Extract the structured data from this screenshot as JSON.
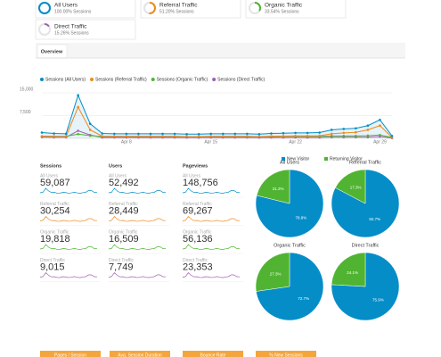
{
  "segments": [
    {
      "name": "All Users",
      "stat": "100.00% Sessions",
      "share": 100,
      "color": "#058dc7"
    },
    {
      "name": "Referral Traffic",
      "stat": "51.20% Sessions",
      "share": 51.2,
      "color": "#ed8a1e"
    },
    {
      "name": "Organic Traffic",
      "stat": "33.54% Sessions",
      "share": 33.54,
      "color": "#50b432"
    },
    {
      "name": "Direct Traffic",
      "stat": "15.26% Sessions",
      "share": 15.26,
      "color": "#a35db5"
    }
  ],
  "tab": "Overview",
  "metrics": {
    "columns": [
      "Sessions",
      "Users",
      "Pageviews"
    ],
    "rows": [
      {
        "segment": "All Users",
        "values": [
          "59,087",
          "52,492",
          "148,756"
        ]
      },
      {
        "segment": "Referral Traffic",
        "values": [
          "30,254",
          "28,449",
          "69,267"
        ]
      },
      {
        "segment": "Organic Traffic",
        "values": [
          "19,818",
          "16,509",
          "56,136"
        ]
      },
      {
        "segment": "Direct Traffic",
        "values": [
          "9,015",
          "7,749",
          "23,353"
        ]
      }
    ]
  },
  "buttons": [
    "Pages / Session",
    "Avg. Session Duration",
    "Bounce Rate",
    "% New Sessions"
  ],
  "chart_data": [
    {
      "type": "line",
      "categories": [
        null,
        null,
        null,
        null,
        null,
        null,
        null,
        "Apr 8",
        null,
        null,
        null,
        null,
        null,
        null,
        "Apr 15",
        null,
        null,
        null,
        null,
        null,
        null,
        "Apr 22",
        null,
        null,
        null,
        null,
        null,
        null,
        "Apr 29",
        null
      ],
      "series": [
        {
          "name": "Sessions (All Users)",
          "color": "#058dc7",
          "values": [
            1900,
            1600,
            1500,
            14200,
            4800,
            1600,
            1500,
            1500,
            1500,
            1500,
            1500,
            1500,
            1400,
            1400,
            1500,
            1500,
            1500,
            1500,
            1400,
            1600,
            1700,
            1800,
            1800,
            1900,
            2800,
            3100,
            3300,
            4200,
            6100,
            800
          ]
        },
        {
          "name": "Sessions (Referral Traffic)",
          "color": "#ed8a1e",
          "values": [
            700,
            600,
            600,
            10300,
            2800,
            700,
            650,
            650,
            650,
            650,
            650,
            650,
            600,
            600,
            650,
            650,
            650,
            650,
            600,
            700,
            750,
            800,
            800,
            850,
            1500,
            1800,
            2000,
            2800,
            4200,
            300
          ]
        },
        {
          "name": "Sessions (Organic Traffic)",
          "color": "#50b432",
          "values": [
            700,
            650,
            650,
            1400,
            900,
            600,
            600,
            600,
            600,
            600,
            600,
            600,
            550,
            550,
            600,
            600,
            600,
            600,
            550,
            600,
            650,
            650,
            650,
            650,
            800,
            800,
            800,
            900,
            1100,
            300
          ]
        },
        {
          "name": "Sessions (Direct Traffic)",
          "color": "#a35db5",
          "values": [
            400,
            350,
            350,
            2500,
            1100,
            300,
            300,
            300,
            300,
            300,
            300,
            300,
            250,
            250,
            300,
            300,
            300,
            300,
            250,
            300,
            300,
            300,
            300,
            300,
            400,
            400,
            400,
            400,
            600,
            100
          ]
        }
      ],
      "ylim": [
        0,
        15000
      ],
      "yticks": [
        {
          "value": 15000,
          "label": "15,000"
        },
        {
          "value": 7500,
          "label": "7,500"
        }
      ],
      "grid": true
    },
    {
      "type": "pie",
      "title": "All Users",
      "categories": [
        "New Visitor",
        "Returning Visitor"
      ],
      "colors": [
        "#058dc7",
        "#50b432"
      ],
      "values": [
        78.8,
        21.2
      ],
      "value_labels": [
        "78.8%",
        "21.2%"
      ]
    },
    {
      "type": "pie",
      "title": "Referral Traffic",
      "categories": [
        "New Visitor",
        "Returning Visitor"
      ],
      "colors": [
        "#058dc7",
        "#50b432"
      ],
      "values": [
        82.7,
        17.3
      ],
      "value_labels": [
        "82.7%",
        "17.3%"
      ]
    },
    {
      "type": "pie",
      "title": "Organic Traffic",
      "categories": [
        "New Visitor",
        "Returning Visitor"
      ],
      "colors": [
        "#058dc7",
        "#50b432"
      ],
      "values": [
        72.7,
        27.3
      ],
      "value_labels": [
        "72.7%",
        "27.3%"
      ]
    },
    {
      "type": "pie",
      "title": "Direct Traffic",
      "categories": [
        "New Visitor",
        "Returning Visitor"
      ],
      "colors": [
        "#058dc7",
        "#50b432"
      ],
      "values": [
        75.9,
        24.1
      ],
      "value_labels": [
        "75.9%",
        "24.1%"
      ]
    }
  ]
}
